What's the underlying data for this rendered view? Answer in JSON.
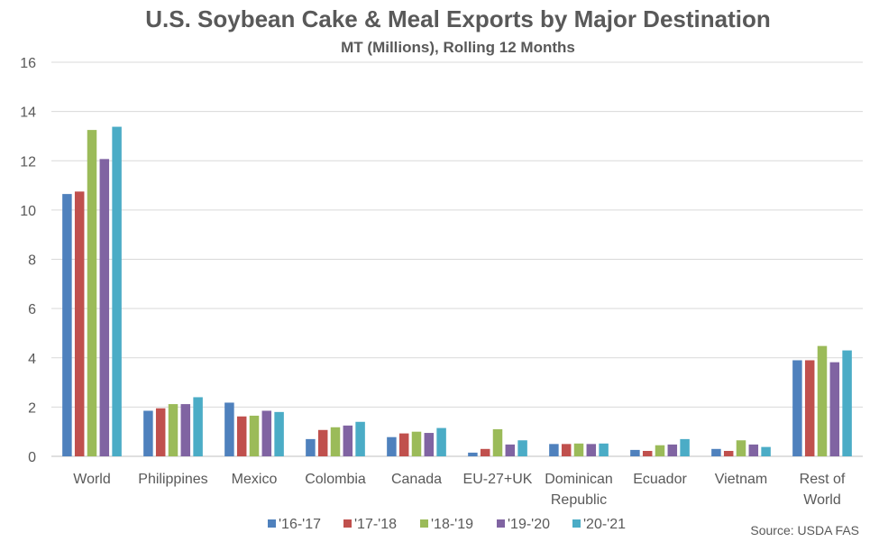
{
  "chart_data": {
    "type": "bar",
    "title": "U.S. Soybean Cake & Meal Exports by Major Destination",
    "subtitle": "MT (Millions), Rolling 12 Months",
    "source": "Source: USDA FAS",
    "categories": [
      [
        "World"
      ],
      [
        "Philippines"
      ],
      [
        "Mexico"
      ],
      [
        "Colombia"
      ],
      [
        "Canada"
      ],
      [
        "EU-27+UK"
      ],
      [
        "Dominican",
        "Republic"
      ],
      [
        "Ecuador"
      ],
      [
        "Vietnam"
      ],
      [
        "Rest of",
        "World"
      ]
    ],
    "ylim": [
      0,
      16
    ],
    "yticks": [
      0,
      2,
      4,
      6,
      8,
      10,
      12,
      14,
      16
    ],
    "grid": true,
    "legend_position": "bottom",
    "series": [
      {
        "name": "'16-'17",
        "color": "#4F81BD",
        "values": [
          10.65,
          1.85,
          2.18,
          0.7,
          0.78,
          0.15,
          0.5,
          0.26,
          0.3,
          3.9
        ]
      },
      {
        "name": "'17-'18",
        "color": "#C0504D",
        "values": [
          10.75,
          1.95,
          1.62,
          1.07,
          0.93,
          0.3,
          0.5,
          0.22,
          0.22,
          3.9
        ]
      },
      {
        "name": "'18-'19",
        "color": "#9BBB59",
        "values": [
          13.25,
          2.12,
          1.65,
          1.18,
          1.0,
          1.1,
          0.52,
          0.45,
          0.65,
          4.48
        ]
      },
      {
        "name": "'19-'20",
        "color": "#8064A2",
        "values": [
          12.07,
          2.12,
          1.85,
          1.25,
          0.95,
          0.48,
          0.5,
          0.48,
          0.48,
          3.82
        ]
      },
      {
        "name": "'20-'21",
        "color": "#4BACC6",
        "values": [
          13.38,
          2.4,
          1.8,
          1.4,
          1.15,
          0.65,
          0.52,
          0.7,
          0.38,
          4.3
        ]
      }
    ]
  }
}
